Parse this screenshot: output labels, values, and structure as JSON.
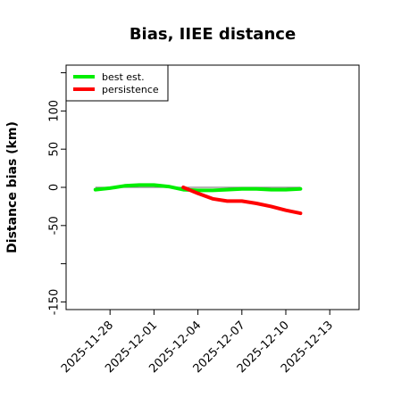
{
  "chart_data": {
    "type": "line",
    "title": "Bias, IIEE distance",
    "xlabel": "",
    "ylabel": "Distance bias (km)",
    "xlim": [
      "2025-11-25",
      "2025-12-15"
    ],
    "ylim": [
      -160,
      160
    ],
    "yticks": [
      -150,
      -100,
      -50,
      0,
      50,
      100,
      150
    ],
    "ytick_labels": [
      "-150",
      "",
      "-50",
      "0",
      "50",
      "100",
      ""
    ],
    "xticks": [
      "2025-11-28",
      "2025-12-01",
      "2025-12-04",
      "2025-12-07",
      "2025-12-10",
      "2025-12-13"
    ],
    "xtick_labels": [
      "2025-11-28",
      "2025-12-01",
      "2025-12-04",
      "2025-12-07",
      "2025-12-10",
      "2025-12-13"
    ],
    "reference_line": {
      "y": 0,
      "from": "2025-11-27",
      "to": "2025-12-11",
      "color": "#888888"
    },
    "legend": {
      "position": "top-left"
    },
    "series": [
      {
        "name": "best est.",
        "color": "#00ee00",
        "x": [
          "2025-11-27",
          "2025-11-28",
          "2025-11-29",
          "2025-11-30",
          "2025-12-01",
          "2025-12-02",
          "2025-12-03",
          "2025-12-04",
          "2025-12-05",
          "2025-12-06",
          "2025-12-07",
          "2025-12-08",
          "2025-12-09",
          "2025-12-10",
          "2025-12-11"
        ],
        "y": [
          -3,
          -1,
          2,
          3,
          3,
          1,
          -3,
          -4,
          -4,
          -3,
          -2,
          -2,
          -3,
          -3,
          -2
        ]
      },
      {
        "name": "persistence",
        "color": "#ff0000",
        "x": [
          "2025-12-03",
          "2025-12-04",
          "2025-12-05",
          "2025-12-06",
          "2025-12-07",
          "2025-12-08",
          "2025-12-09",
          "2025-12-10",
          "2025-12-11"
        ],
        "y": [
          0,
          -8,
          -15,
          -18,
          -18,
          -21,
          -25,
          -30,
          -34
        ]
      }
    ]
  }
}
